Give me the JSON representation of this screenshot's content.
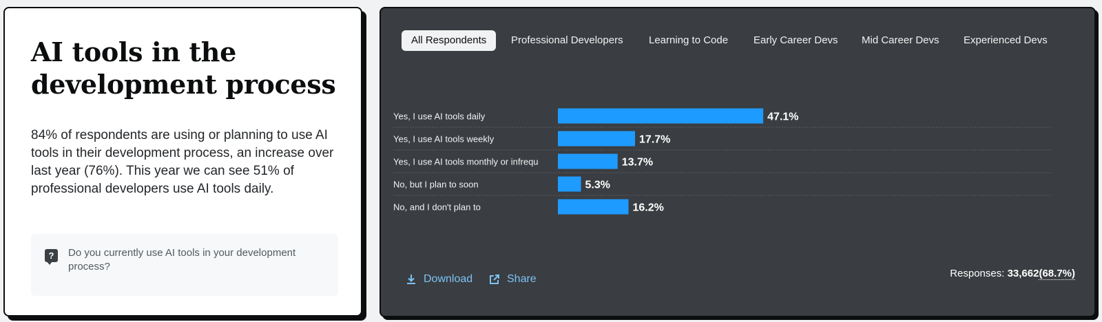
{
  "left": {
    "title": "AI tools in the development process",
    "description": "84% of respondents are using or planning to use AI tools in their development process, an increase over last year (76%). This year we can see 51% of professional developers use AI tools daily.",
    "question": "Do you currently use AI tools in your development process?",
    "question_icon": "?"
  },
  "tabs": [
    "All Respondents",
    "Professional Developers",
    "Learning to Code",
    "Early Career Devs",
    "Mid Career Devs",
    "Experienced Devs"
  ],
  "active_tab": 0,
  "actions": {
    "download": "Download",
    "share": "Share"
  },
  "responses": {
    "label": "Responses:",
    "count": "33,662",
    "percent": "(68.7%)"
  },
  "colors": {
    "bar": "#1e9bff",
    "panel": "#3a3d41",
    "link": "#7cc3f5"
  },
  "chart_data": {
    "type": "bar",
    "orientation": "horizontal",
    "categories": [
      "Yes, I use AI tools daily",
      "Yes, I use AI tools weekly",
      "Yes, I use AI tools monthly or infrequ",
      "No, but I plan to soon",
      "No, and I don't plan to"
    ],
    "values": [
      47.1,
      17.7,
      13.7,
      5.3,
      16.2
    ],
    "value_labels": [
      "47.1%",
      "17.7%",
      "13.7%",
      "5.3%",
      "16.2%"
    ],
    "unit": "%",
    "grid": "dotted row separators"
  }
}
